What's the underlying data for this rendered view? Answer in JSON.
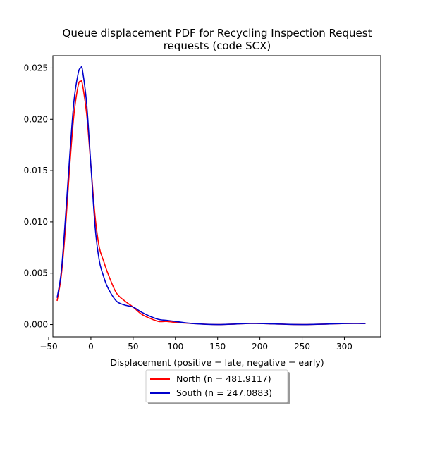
{
  "chart_data": {
    "type": "line",
    "title": [
      "Queue displacement PDF for Recycling Inspection Request",
      "requests (code SCX)"
    ],
    "xlabel": "Displacement (positive = late, negative = early)",
    "ylabel": "",
    "xlim": [
      -45,
      343
    ],
    "ylim": [
      -0.0012,
      0.0262
    ],
    "xticks": [
      -50,
      0,
      50,
      100,
      150,
      200,
      250,
      300
    ],
    "yticks": [
      0.0,
      0.005,
      0.01,
      0.015,
      0.02,
      0.025
    ],
    "xtick_labels": [
      "−50",
      "0",
      "50",
      "100",
      "150",
      "200",
      "250",
      "300"
    ],
    "ytick_labels": [
      "0.000",
      "0.005",
      "0.010",
      "0.015",
      "0.020",
      "0.025"
    ],
    "grid": false,
    "legend_position": "below-center",
    "series": [
      {
        "name": "North (n = 481.9117)",
        "color": "#ff0000",
        "x": [
          -40,
          -35,
          -30,
          -25,
          -20,
          -15,
          -12,
          -10,
          -5,
          0,
          5,
          10,
          15,
          20,
          30,
          40,
          50,
          60,
          70,
          80,
          90,
          100,
          120,
          150,
          185,
          200,
          250,
          300,
          325
        ],
        "y": [
          0.0023,
          0.0048,
          0.0095,
          0.0155,
          0.0205,
          0.0233,
          0.0237,
          0.0234,
          0.0205,
          0.0155,
          0.0105,
          0.0075,
          0.0062,
          0.005,
          0.0031,
          0.0023,
          0.0017,
          0.001,
          0.0006,
          0.0003,
          0.0003,
          0.0002,
          0.0001,
          0.0,
          0.0001,
          0.0001,
          0.0,
          0.0001,
          0.0001
        ]
      },
      {
        "name": "South (n = 247.0883)",
        "color": "#0000cc",
        "x": [
          -40,
          -35,
          -30,
          -25,
          -20,
          -15,
          -12,
          -10,
          -5,
          0,
          5,
          10,
          15,
          20,
          30,
          40,
          50,
          60,
          70,
          80,
          90,
          100,
          120,
          150,
          185,
          200,
          250,
          300,
          325
        ],
        "y": [
          0.0026,
          0.0052,
          0.0105,
          0.0165,
          0.0218,
          0.0245,
          0.025,
          0.0248,
          0.0215,
          0.0155,
          0.0095,
          0.0062,
          0.0047,
          0.0036,
          0.0023,
          0.0019,
          0.0017,
          0.0012,
          0.0008,
          0.0005,
          0.0004,
          0.0003,
          0.0001,
          0.0,
          0.0001,
          0.0001,
          0.0,
          0.0001,
          0.0001
        ]
      }
    ]
  }
}
